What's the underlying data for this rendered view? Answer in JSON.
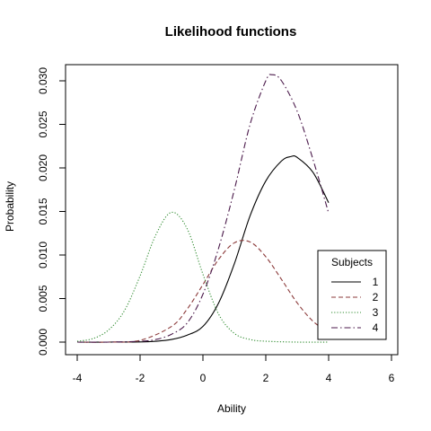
{
  "chart_data": {
    "type": "line",
    "title": "Likelihood functions",
    "xlabel": "Ability",
    "ylabel": "Probability",
    "xlim": [
      -4,
      6
    ],
    "ylim": [
      0,
      0.031
    ],
    "xticks": [
      -4,
      -2,
      0,
      2,
      4,
      6
    ],
    "yticks": [
      0.0,
      0.005,
      0.01,
      0.015,
      0.02,
      0.025,
      0.03
    ],
    "ytick_labels": [
      "0.000",
      "0.005",
      "0.010",
      "0.015",
      "0.020",
      "0.025",
      "0.030"
    ],
    "grid": false,
    "legend": {
      "title": "Subjects",
      "position": "bottom-right"
    },
    "series": [
      {
        "name": "1",
        "color": "#000000",
        "dash": "solid",
        "x": [
          -4,
          -3,
          -2,
          -1.5,
          -1,
          -0.5,
          0,
          0.5,
          1,
          1.5,
          2,
          2.5,
          2.8,
          3,
          3.5,
          4
        ],
        "y": [
          0.0,
          0.0,
          2e-05,
          0.0001,
          0.0003,
          0.0008,
          0.0018,
          0.0045,
          0.009,
          0.0145,
          0.0185,
          0.0208,
          0.0213,
          0.0212,
          0.0195,
          0.016
        ]
      },
      {
        "name": "2",
        "color": "#8b3a3a",
        "dash": "dashed",
        "x": [
          -4,
          -3,
          -2,
          -1,
          -0.5,
          0,
          0.5,
          1,
          1.5,
          2,
          2.5,
          3,
          3.5,
          4
        ],
        "y": [
          0.0,
          0.0,
          0.0002,
          0.0018,
          0.0038,
          0.0066,
          0.0095,
          0.0114,
          0.0115,
          0.0098,
          0.0072,
          0.0045,
          0.0024,
          0.0011
        ]
      },
      {
        "name": "3",
        "color": "#2e8b2e",
        "dash": "dotted",
        "x": [
          -4,
          -3.5,
          -3,
          -2.5,
          -2,
          -1.5,
          -1,
          -0.5,
          0,
          0.5,
          1,
          1.5,
          2,
          3,
          4
        ],
        "y": [
          0.0001,
          0.0004,
          0.0014,
          0.0036,
          0.0076,
          0.0123,
          0.0149,
          0.013,
          0.0078,
          0.0032,
          0.001,
          0.0003,
          0.0001,
          0.0,
          0.0
        ]
      },
      {
        "name": "4",
        "color": "#4b1a4b",
        "dash": "dashdot",
        "x": [
          -4,
          -3,
          -2,
          -1.5,
          -1,
          -0.5,
          0,
          0.5,
          1,
          1.5,
          2,
          2.2,
          2.5,
          3,
          3.5,
          4
        ],
        "y": [
          0.0,
          0.0,
          0.0001,
          0.0003,
          0.0009,
          0.0022,
          0.0055,
          0.0108,
          0.0175,
          0.025,
          0.03,
          0.0307,
          0.03,
          0.0265,
          0.021,
          0.0148
        ]
      }
    ]
  }
}
